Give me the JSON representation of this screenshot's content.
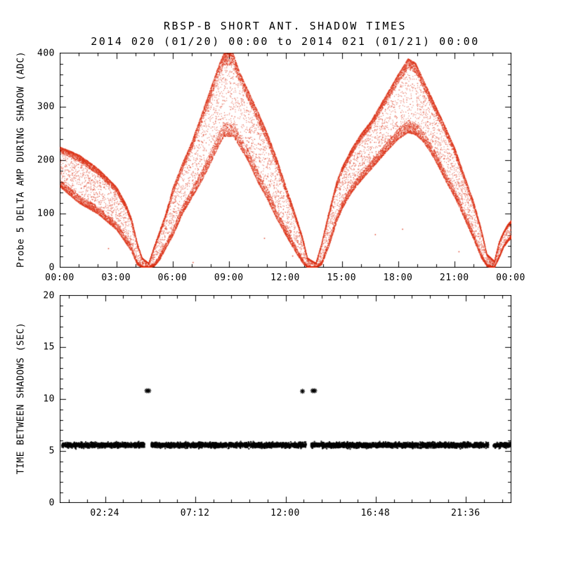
{
  "title": "RBSP-B SHORT ANT. SHADOW TIMES",
  "subtitle": "2014 020 (01/20) 00:00 to 2014 021 (01/21) 00:00",
  "colors": {
    "red_points": "#dc3318",
    "black_points": "#000000",
    "axis": "#000000",
    "background": "#ffffff"
  },
  "chart_data": [
    {
      "type": "scatter",
      "name": "probe-5-delta-amp-during-shadow",
      "ylabel": "Probe 5 DELTA AMP DURING SHADOW (ADC)",
      "xlabel": "",
      "marker": "dot",
      "color": "#dc3318",
      "x_axis": {
        "lim_hours": [
          0,
          24
        ],
        "major_tick_hours": [
          0,
          3,
          6,
          9,
          12,
          15,
          18,
          21,
          24
        ],
        "minor_tick_step_hours": 1,
        "tick_labels": [
          "00:00",
          "03:00",
          "06:00",
          "09:00",
          "12:00",
          "15:00",
          "18:00",
          "21:00",
          "00:00"
        ]
      },
      "y_axis": {
        "lim": [
          0,
          400
        ],
        "major_ticks": [
          0,
          100,
          200,
          300,
          400
        ],
        "minor_tick_step": 20,
        "tick_labels": [
          "0",
          "100",
          "200",
          "300",
          "400"
        ]
      },
      "envelope_hour_min_max": [
        [
          0.0,
          150,
          225
        ],
        [
          0.5,
          135,
          218
        ],
        [
          1.0,
          120,
          210
        ],
        [
          1.5,
          110,
          198
        ],
        [
          2.0,
          100,
          185
        ],
        [
          2.5,
          85,
          168
        ],
        [
          3.0,
          70,
          150
        ],
        [
          3.5,
          45,
          118
        ],
        [
          3.8,
          28,
          90
        ],
        [
          4.1,
          5,
          45
        ],
        [
          4.35,
          0,
          18
        ],
        [
          4.7,
          0,
          8
        ],
        [
          5.0,
          2,
          40
        ],
        [
          5.3,
          15,
          70
        ],
        [
          5.6,
          35,
          100
        ],
        [
          6.0,
          60,
          150
        ],
        [
          6.5,
          100,
          195
        ],
        [
          7.0,
          130,
          235
        ],
        [
          7.5,
          160,
          285
        ],
        [
          8.0,
          195,
          335
        ],
        [
          8.4,
          225,
          375
        ],
        [
          8.7,
          245,
          400
        ],
        [
          9.2,
          245,
          400
        ],
        [
          9.5,
          228,
          368
        ],
        [
          10.0,
          198,
          330
        ],
        [
          10.5,
          160,
          292
        ],
        [
          11.0,
          128,
          252
        ],
        [
          11.5,
          92,
          205
        ],
        [
          12.0,
          60,
          152
        ],
        [
          12.5,
          30,
          100
        ],
        [
          12.9,
          8,
          55
        ],
        [
          13.15,
          0,
          18
        ],
        [
          13.6,
          0,
          8
        ],
        [
          13.9,
          5,
          45
        ],
        [
          14.3,
          40,
          105
        ],
        [
          14.7,
          85,
          160
        ],
        [
          15.0,
          110,
          188
        ],
        [
          15.5,
          140,
          222
        ],
        [
          16.0,
          162,
          250
        ],
        [
          16.5,
          182,
          272
        ],
        [
          17.0,
          202,
          302
        ],
        [
          17.5,
          222,
          332
        ],
        [
          18.0,
          240,
          362
        ],
        [
          18.5,
          252,
          390
        ],
        [
          18.9,
          248,
          382
        ],
        [
          19.3,
          235,
          352
        ],
        [
          19.7,
          215,
          322
        ],
        [
          20.1,
          190,
          292
        ],
        [
          20.5,
          162,
          262
        ],
        [
          21.0,
          130,
          222
        ],
        [
          21.5,
          92,
          172
        ],
        [
          22.0,
          52,
          122
        ],
        [
          22.4,
          18,
          72
        ],
        [
          22.7,
          2,
          25
        ],
        [
          23.1,
          0,
          12
        ],
        [
          23.35,
          18,
          48
        ],
        [
          23.6,
          38,
          68
        ],
        [
          23.8,
          48,
          80
        ],
        [
          24.0,
          55,
          88
        ]
      ],
      "stray_points_hour_value": [
        [
          2.55,
          36
        ],
        [
          7.05,
          10
        ],
        [
          10.85,
          55
        ],
        [
          12.35,
          22
        ],
        [
          14.15,
          50
        ],
        [
          16.75,
          62
        ],
        [
          18.2,
          72
        ],
        [
          21.2,
          30
        ]
      ]
    },
    {
      "type": "scatter",
      "name": "time-between-shadows",
      "ylabel": "TIME BETWEEN SHADOWS (SEC)",
      "xlabel": "",
      "marker": "asterisk",
      "color": "#000000",
      "x_axis": {
        "lim_hours": [
          0,
          24
        ],
        "major_tick_hours": [
          2.4,
          7.2,
          12.0,
          16.8,
          21.6
        ],
        "minor_tick_step_hours": 0.96,
        "tick_labels": [
          "02:24",
          "07:12",
          "12:00",
          "16:48",
          "21:36"
        ]
      },
      "y_axis": {
        "lim": [
          0,
          20
        ],
        "major_ticks": [
          0,
          5,
          10,
          15,
          20
        ],
        "minor_tick_step": 1,
        "tick_labels": [
          "0",
          "5",
          "10",
          "15",
          "20"
        ]
      },
      "band": {
        "y_center_sec": 5.55,
        "y_spread_sec": 0.25,
        "x_start_hour": 0.1,
        "x_end_hour": 23.95,
        "gap_hours": [
          [
            4.5,
            4.85
          ],
          [
            13.1,
            13.35
          ],
          [
            22.8,
            23.05
          ]
        ]
      },
      "outliers_hour_sec": [
        [
          4.62,
          10.8
        ],
        [
          4.72,
          10.8
        ],
        [
          12.9,
          10.75
        ],
        [
          13.45,
          10.8
        ],
        [
          13.55,
          10.8
        ]
      ]
    }
  ]
}
